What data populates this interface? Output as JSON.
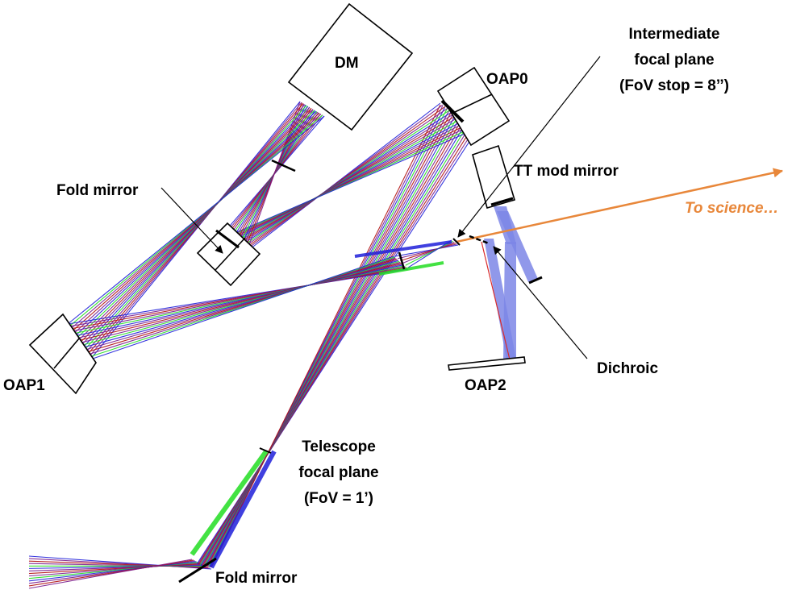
{
  "labels": {
    "dm": "DM",
    "oap0": "OAP0",
    "oap1": "OAP1",
    "oap2": "OAP2",
    "fold_mirror_top": "Fold mirror",
    "fold_mirror_bottom": "Fold mirror",
    "tt_mod_mirror": "TT mod mirror",
    "dichroic": "Dichroic",
    "to_science": "To science…",
    "intermediate_focal_plane": [
      "Intermediate",
      "focal plane",
      "(FoV stop = 8’’)"
    ],
    "telescope_focal_plane": [
      "Telescope",
      "focal plane",
      "(FoV = 1’)"
    ]
  },
  "colors": {
    "ray_blue": "#1f1fd9",
    "ray_green": "#22dd22",
    "ray_red": "#b01010",
    "ray_purple": "#7a1a8c",
    "science_beam": "#e8873a",
    "wfs_beam": "#7d86e6"
  }
}
